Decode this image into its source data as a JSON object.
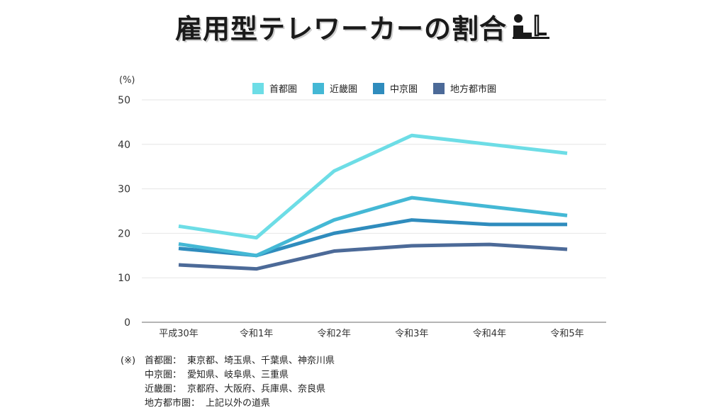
{
  "title": "雇用型テレワーカーの割合",
  "title_icon": "person-at-computer-icon",
  "unit": "(%)",
  "colors": {
    "series": [
      "#6ddde6",
      "#44b8d5",
      "#2f8cbd",
      "#4c6a98"
    ],
    "grid": "#e6e6e6",
    "axis": "#888888"
  },
  "chart_data": {
    "type": "line",
    "title": "雇用型テレワーカーの割合",
    "xlabel": "",
    "ylabel": "(%)",
    "ylim": [
      0,
      50
    ],
    "yticks": [
      0,
      10,
      20,
      30,
      40,
      50
    ],
    "grid": true,
    "legend_position": "top",
    "categories": [
      "平成30年",
      "令和1年",
      "令和2年",
      "令和3年",
      "令和4年",
      "令和5年"
    ],
    "series": [
      {
        "name": "首都圏",
        "values": [
          21.6,
          19.0,
          34.0,
          42.0,
          40.0,
          38.0
        ]
      },
      {
        "name": "近畿圏",
        "values": [
          17.6,
          15.0,
          23.0,
          28.0,
          26.0,
          24.0
        ]
      },
      {
        "name": "中京圏",
        "values": [
          16.6,
          15.0,
          20.0,
          23.0,
          22.0,
          22.0
        ]
      },
      {
        "name": "地方都市圏",
        "values": [
          12.9,
          12.0,
          16.0,
          17.2,
          17.5,
          16.4
        ]
      }
    ]
  },
  "notes": {
    "mark": "(※)",
    "rows": [
      {
        "label": "首都圏：",
        "text": "東京都、埼玉県、千葉県、神奈川県"
      },
      {
        "label": "中京圏：",
        "text": "愛知県、岐阜県、三重県"
      },
      {
        "label": "近畿圏：",
        "text": "京都府、大阪府、兵庫県、奈良県"
      },
      {
        "label": "地方都市圏：",
        "text": "上記以外の道県"
      }
    ]
  }
}
